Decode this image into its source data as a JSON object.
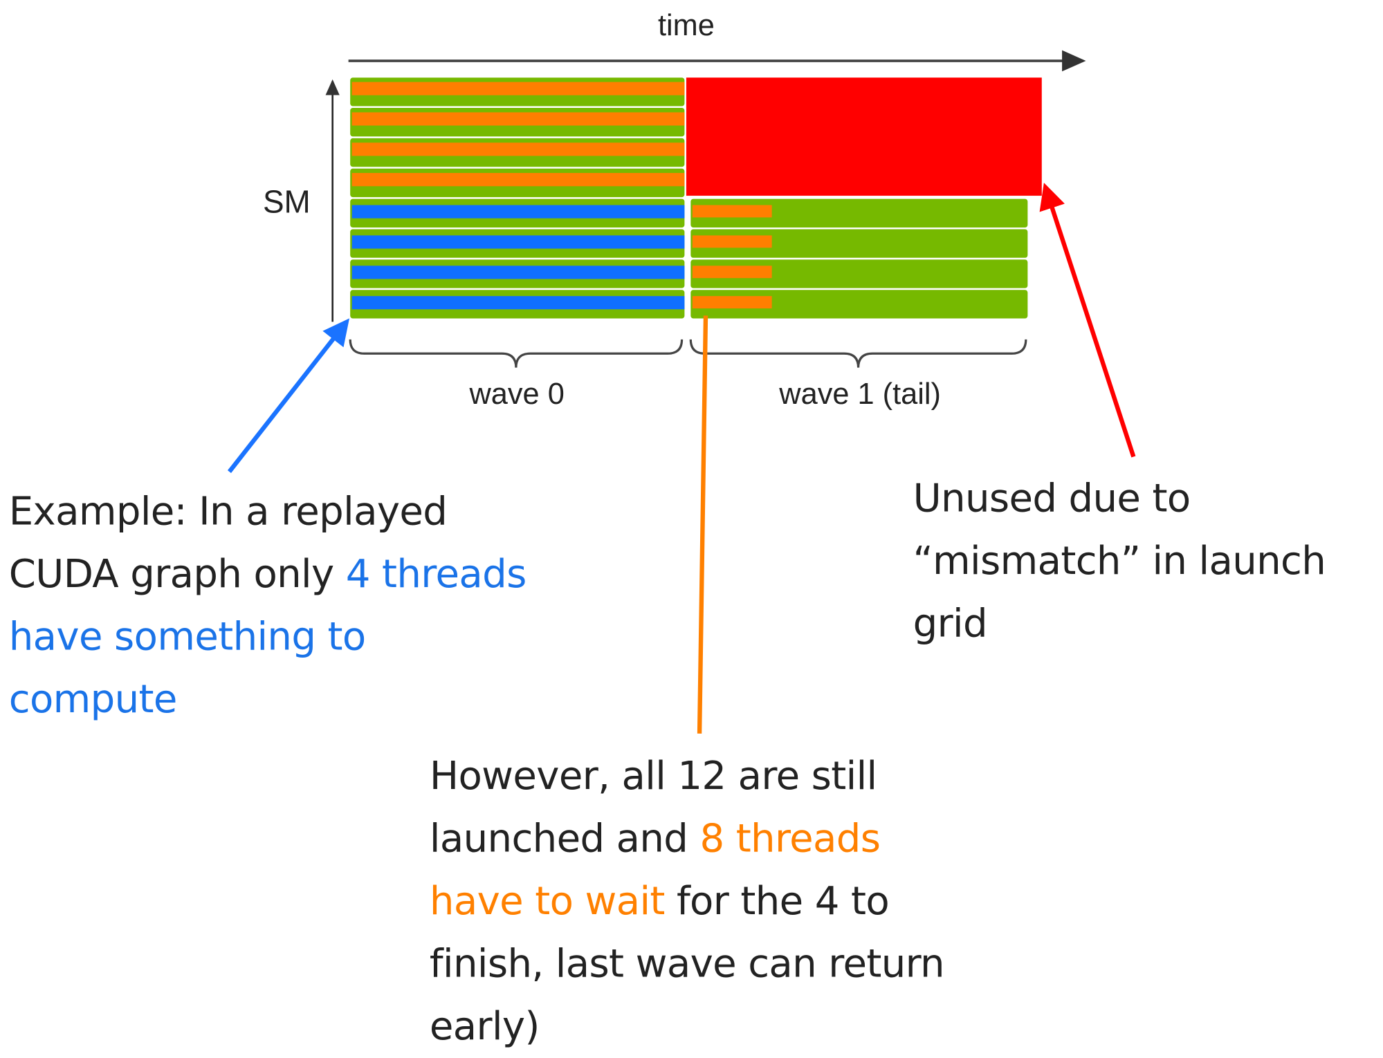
{
  "diagram": {
    "x_axis_label": "time",
    "y_axis_label": "SM",
    "wave_labels": [
      "wave 0",
      "wave 1 (tail)"
    ],
    "rows": 8,
    "colors": {
      "green": "#76b900",
      "orange": "#ff7f00",
      "blue": "#0f6fff",
      "red": "#ff0000",
      "blue_arrow": "#1a73ff",
      "orange_line": "#ff8000"
    }
  },
  "notes": {
    "left": {
      "text1": "Example: In a replayed CUDA graph only ",
      "highlight": "4 threads have something to compute"
    },
    "right": {
      "text": "Unused due to “mismatch” in launch grid"
    },
    "bottom": {
      "text1": "However, all 12 are still launched and ",
      "highlight": "8 threads have to wait",
      "text2": " for the 4 to finish, last wave can return early)"
    }
  }
}
